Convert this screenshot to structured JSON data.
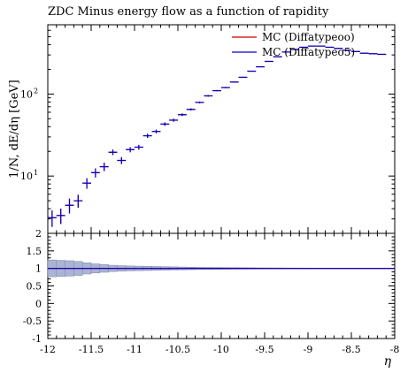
{
  "chart_data": {
    "type": "scatter",
    "title": "ZDC Minus energy flow as a function of rapidity",
    "xlabel": "η",
    "ylabel": "1/N, dE/dη [GeV]",
    "yscale": "log",
    "xlim": [
      -12,
      -8
    ],
    "ylim": [
      2.0,
      700
    ],
    "y_tick_labels": [
      "10",
      "10",
      "10"
    ],
    "y_tick_exponents": [
      "1",
      "2",
      ""
    ],
    "x_tick_labels": [
      "-12",
      "-11.5",
      "-11",
      "-10.5",
      "-10",
      "-9.5",
      "-9",
      "-8.5",
      "-8"
    ],
    "legend": {
      "position": "top-right"
    },
    "series": [
      {
        "name": "MC (Diffatypeoo)",
        "color": "#cc0000",
        "x": [
          -11.95,
          -11.85,
          -11.75,
          -11.65,
          -11.55,
          -11.45,
          -11.35,
          -11.25,
          -11.15,
          -11.05,
          -10.95,
          -10.85,
          -10.75,
          -10.65,
          -10.55,
          -10.45,
          -10.35,
          -10.25,
          -10.15,
          -10.05,
          -9.95,
          -9.85,
          -9.75,
          -9.65,
          -9.55,
          -9.45,
          -9.35,
          -9.25,
          -9.15,
          -9.05,
          -8.95,
          -8.85,
          -8.75,
          -8.65,
          -8.55,
          -8.45,
          -8.35,
          -8.25,
          -8.15
        ],
        "y": [
          3.1,
          3.3,
          4.4,
          5.0,
          8.2,
          11,
          13,
          19.5,
          15.5,
          21,
          22.5,
          31,
          35,
          43,
          48,
          56,
          65,
          79,
          95,
          110,
          120,
          140,
          160,
          190,
          215,
          250,
          285,
          325,
          350,
          372,
          385,
          385,
          372,
          360,
          342,
          330,
          315,
          310,
          305
        ],
        "yerr": [
          0.7,
          0.7,
          0.9,
          0.9,
          1.2,
          1.4,
          1.5,
          1.5,
          1.5,
          1.5,
          1.5,
          1.8,
          1.8,
          2,
          2,
          2,
          2,
          2,
          2,
          2,
          2,
          2,
          2,
          2,
          2,
          2,
          2,
          2,
          2,
          2,
          2,
          2,
          2,
          2,
          2,
          2,
          2,
          2,
          2
        ]
      },
      {
        "name": "MC (Diffatypeo5)",
        "color": "#0000cc",
        "x": [
          -11.95,
          -11.85,
          -11.75,
          -11.65,
          -11.55,
          -11.45,
          -11.35,
          -11.25,
          -11.15,
          -11.05,
          -10.95,
          -10.85,
          -10.75,
          -10.65,
          -10.55,
          -10.45,
          -10.35,
          -10.25,
          -10.15,
          -10.05,
          -9.95,
          -9.85,
          -9.75,
          -9.65,
          -9.55,
          -9.45,
          -9.35,
          -9.25,
          -9.15,
          -9.05,
          -8.95,
          -8.85,
          -8.75,
          -8.65,
          -8.55,
          -8.45,
          -8.35,
          -8.25,
          -8.15
        ],
        "y": [
          3.1,
          3.3,
          4.4,
          5.0,
          8.2,
          11,
          13,
          19.5,
          15.5,
          21,
          22.5,
          31,
          35,
          43,
          48,
          56,
          65,
          79,
          95,
          110,
          120,
          140,
          160,
          190,
          215,
          250,
          285,
          325,
          350,
          372,
          385,
          385,
          372,
          360,
          342,
          330,
          315,
          310,
          305
        ],
        "yerr": [
          0.7,
          0.7,
          0.9,
          0.9,
          1.2,
          1.4,
          1.5,
          1.5,
          1.5,
          1.5,
          1.5,
          1.8,
          1.8,
          2,
          2,
          2,
          2,
          2,
          2,
          2,
          2,
          2,
          2,
          2,
          2,
          2,
          2,
          2,
          2,
          2,
          2,
          2,
          2,
          2,
          2,
          2,
          2,
          2,
          2
        ]
      }
    ],
    "ratio": {
      "ylim": [
        -1,
        2
      ],
      "y_tick_labels": [
        "-1",
        "-0.5",
        "0",
        "0.5",
        "1",
        "1.5",
        "2"
      ],
      "reference": 1,
      "band_halfwidth": [
        0.24,
        0.23,
        0.22,
        0.2,
        0.16,
        0.13,
        0.11,
        0.09,
        0.08,
        0.07,
        0.065,
        0.06,
        0.055,
        0.05,
        0.045,
        0.04,
        0.035,
        0.03,
        0.028,
        0.026,
        0.024,
        0.022,
        0.02,
        0.018,
        0.016,
        0.015,
        0.014,
        0.013,
        0.012,
        0.011,
        0.01,
        0.01,
        0.01,
        0.01,
        0.01,
        0.01,
        0.01,
        0.01,
        0.01
      ]
    }
  }
}
